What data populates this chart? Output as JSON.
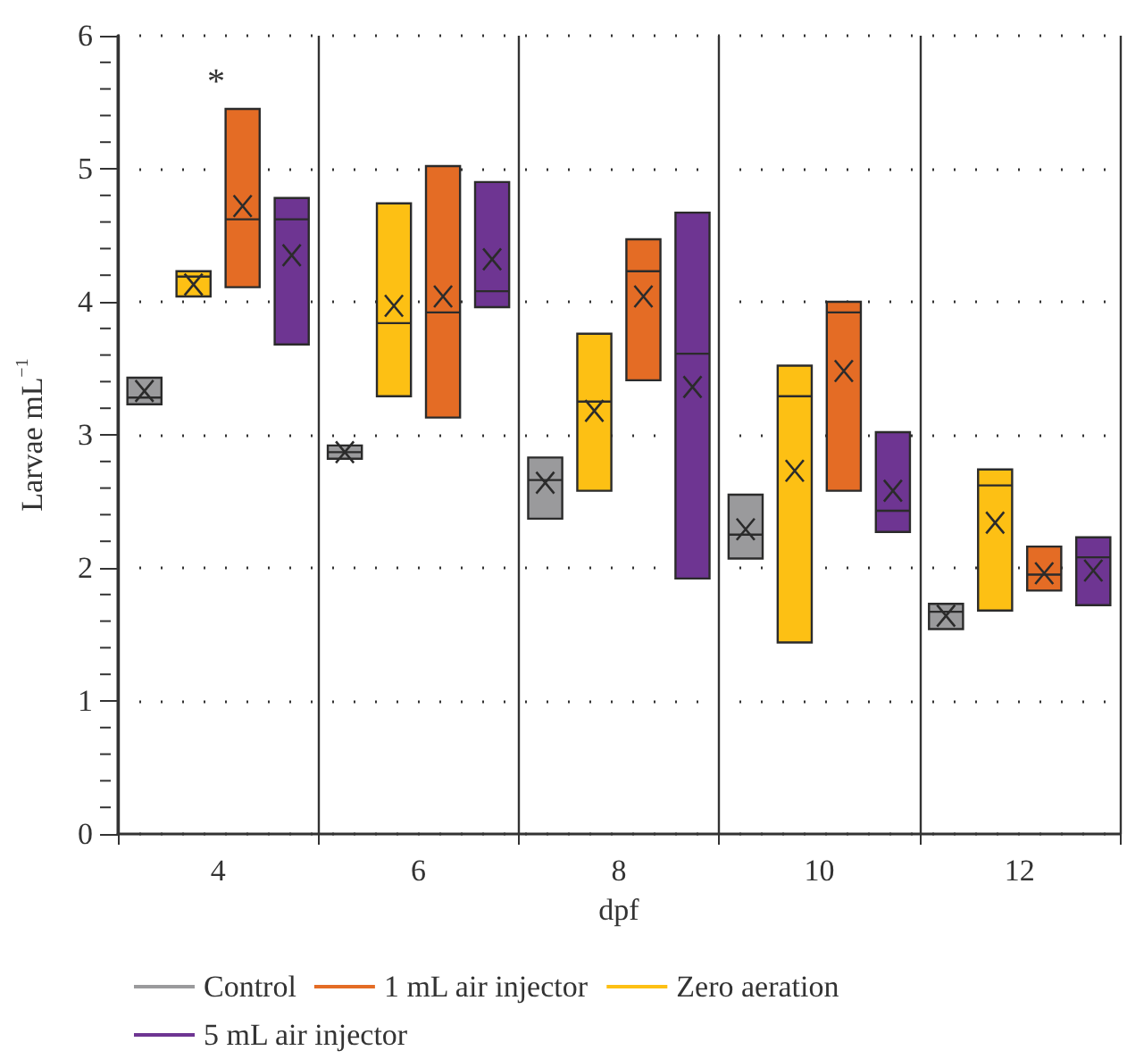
{
  "chart_data": {
    "type": "box",
    "xlabel": "dpf",
    "ylabel": "Larvae mL$^{−1}$",
    "categories": [
      "4",
      "6",
      "8",
      "10",
      "12"
    ],
    "ylim": [
      0,
      6
    ],
    "yticks": [
      0,
      1,
      2,
      3,
      4,
      5,
      6
    ],
    "grid": true,
    "legend": "bottom",
    "marker": "cross",
    "annotations": [
      "*"
    ],
    "series": [
      {
        "name": "Control",
        "color": "#9a9a9c",
        "boxes": [
          {
            "low": 3.23,
            "q1": 3.23,
            "median": 3.28,
            "q3": 3.43,
            "high": 3.43,
            "mean": 3.33
          },
          {
            "low": 2.82,
            "q1": 2.82,
            "median": 2.87,
            "q3": 2.92,
            "high": 2.92,
            "mean": 2.87
          },
          {
            "low": 2.37,
            "q1": 2.37,
            "median": 2.66,
            "q3": 2.83,
            "high": 2.83,
            "mean": 2.64
          },
          {
            "low": 2.07,
            "q1": 2.07,
            "median": 2.25,
            "q3": 2.55,
            "high": 2.55,
            "mean": 2.29
          },
          {
            "low": 1.54,
            "q1": 1.54,
            "median": 1.67,
            "q3": 1.73,
            "high": 1.73,
            "mean": 1.64
          }
        ]
      },
      {
        "name": "Zero aeration",
        "color": "#fdc014",
        "boxes": [
          {
            "low": 4.04,
            "q1": 4.04,
            "median": 4.19,
            "q3": 4.23,
            "high": 4.23,
            "mean": 4.13
          },
          {
            "low": 3.29,
            "q1": 3.29,
            "median": 3.84,
            "q3": 4.74,
            "high": 4.74,
            "mean": 3.97
          },
          {
            "low": 2.58,
            "q1": 2.58,
            "median": 3.25,
            "q3": 3.76,
            "high": 3.76,
            "mean": 3.18
          },
          {
            "low": 1.44,
            "q1": 1.44,
            "median": 3.29,
            "q3": 3.52,
            "high": 3.52,
            "mean": 2.73
          },
          {
            "low": 1.68,
            "q1": 1.68,
            "median": 2.62,
            "q3": 2.74,
            "high": 2.74,
            "mean": 2.34
          }
        ]
      },
      {
        "name": "1 mL air injector",
        "color": "#e46c25",
        "boxes": [
          {
            "low": 4.11,
            "q1": 4.11,
            "median": 4.62,
            "q3": 5.45,
            "high": 5.45,
            "mean": 4.72
          },
          {
            "low": 3.13,
            "q1": 3.13,
            "median": 3.92,
            "q3": 5.02,
            "high": 5.02,
            "mean": 4.04
          },
          {
            "low": 3.41,
            "q1": 3.41,
            "median": 4.23,
            "q3": 4.47,
            "high": 4.47,
            "mean": 4.04
          },
          {
            "low": 2.58,
            "q1": 2.58,
            "median": 3.92,
            "q3": 4.0,
            "high": 4.0,
            "mean": 3.48
          },
          {
            "low": 1.83,
            "q1": 1.83,
            "median": 1.95,
            "q3": 2.16,
            "high": 2.16,
            "mean": 1.96
          }
        ]
      },
      {
        "name": "5 mL air injector",
        "color": "#6e3592",
        "boxes": [
          {
            "low": 3.68,
            "q1": 3.68,
            "median": 4.62,
            "q3": 4.78,
            "high": 4.78,
            "mean": 4.35
          },
          {
            "low": 3.96,
            "q1": 3.96,
            "median": 4.08,
            "q3": 4.9,
            "high": 4.9,
            "mean": 4.32
          },
          {
            "low": 1.92,
            "q1": 1.92,
            "median": 3.61,
            "q3": 4.67,
            "high": 4.67,
            "mean": 3.36
          },
          {
            "low": 2.27,
            "q1": 2.27,
            "median": 2.43,
            "q3": 3.02,
            "high": 3.02,
            "mean": 2.58
          },
          {
            "low": 1.72,
            "q1": 1.72,
            "median": 2.08,
            "q3": 2.23,
            "high": 2.23,
            "mean": 1.98
          }
        ]
      }
    ]
  }
}
